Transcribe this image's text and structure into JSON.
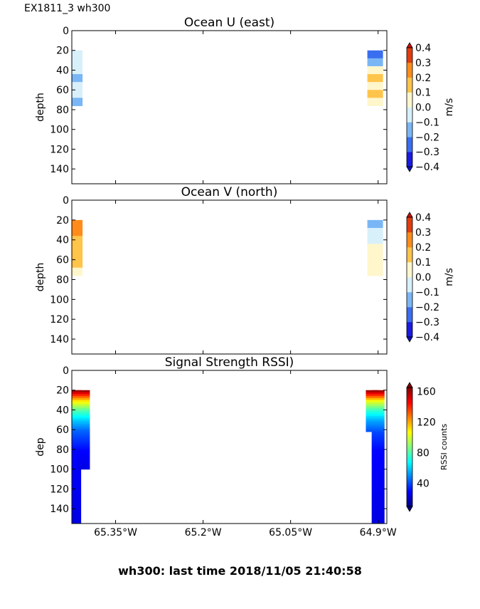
{
  "suptitle": "EX1811_3 wh300",
  "footer": "wh300: last time 2018/11/05 21:40:58",
  "chart_data": [
    {
      "type": "heatmap",
      "title": "Ocean U (east)",
      "ylabel": "depth",
      "ylim": [
        155,
        0
      ],
      "yticks": [
        "0",
        "20",
        "40",
        "60",
        "80",
        "100",
        "120",
        "140"
      ],
      "xlim": [
        -65.425,
        -64.885
      ],
      "xticks": [],
      "colorbar": {
        "label": "m/s",
        "range": [
          -0.4,
          0.4
        ],
        "ticks": [
          "0.4",
          "0.3",
          "0.2",
          "0.1",
          "0.0",
          "−0.1",
          "−0.2",
          "−0.3",
          "−0.4"
        ],
        "colors": [
          "#1a1ae0",
          "#3a6ef0",
          "#7ab6f5",
          "#d8f0fa",
          "#fff6cc",
          "#ffc44a",
          "#ff8c1a",
          "#e03c10"
        ]
      },
      "cells": [
        {
          "x": -65.42,
          "depth": 24,
          "value": -0.05
        },
        {
          "x": -65.42,
          "depth": 32,
          "value": -0.05
        },
        {
          "x": -65.42,
          "depth": 40,
          "value": -0.06
        },
        {
          "x": -65.42,
          "depth": 48,
          "value": -0.12
        },
        {
          "x": -65.42,
          "depth": 56,
          "value": -0.06
        },
        {
          "x": -65.42,
          "depth": 64,
          "value": -0.05
        },
        {
          "x": -65.42,
          "depth": 72,
          "value": -0.12
        },
        {
          "x": -64.905,
          "depth": 24,
          "value": -0.3
        },
        {
          "x": -64.905,
          "depth": 32,
          "value": -0.15
        },
        {
          "x": -64.905,
          "depth": 40,
          "value": 0.05
        },
        {
          "x": -64.905,
          "depth": 48,
          "value": 0.12
        },
        {
          "x": -64.905,
          "depth": 56,
          "value": 0.05
        },
        {
          "x": -64.905,
          "depth": 64,
          "value": 0.12
        },
        {
          "x": -64.905,
          "depth": 72,
          "value": 0.05
        }
      ]
    },
    {
      "type": "heatmap",
      "title": "Ocean V (north)",
      "ylabel": "depth",
      "ylim": [
        155,
        0
      ],
      "yticks": [
        "0",
        "20",
        "40",
        "60",
        "80",
        "100",
        "120",
        "140"
      ],
      "xlim": [
        -65.425,
        -64.885
      ],
      "xticks": [],
      "colorbar": {
        "label": "m/s",
        "range": [
          -0.4,
          0.4
        ],
        "ticks": [
          "0.4",
          "0.3",
          "0.2",
          "0.1",
          "0.0",
          "−0.1",
          "−0.2",
          "−0.3",
          "−0.4"
        ],
        "colors": [
          "#1a1ae0",
          "#3a6ef0",
          "#7ab6f5",
          "#d8f0fa",
          "#fff6cc",
          "#ffc44a",
          "#ff8c1a",
          "#e03c10"
        ]
      },
      "cells": [
        {
          "x": -65.42,
          "depth": 24,
          "value": 0.25
        },
        {
          "x": -65.42,
          "depth": 32,
          "value": 0.2
        },
        {
          "x": -65.42,
          "depth": 40,
          "value": 0.15
        },
        {
          "x": -65.42,
          "depth": 48,
          "value": 0.15
        },
        {
          "x": -65.42,
          "depth": 56,
          "value": 0.1
        },
        {
          "x": -65.42,
          "depth": 64,
          "value": 0.15
        },
        {
          "x": -65.42,
          "depth": 72,
          "value": 0.05
        },
        {
          "x": -64.905,
          "depth": 24,
          "value": -0.12
        },
        {
          "x": -64.905,
          "depth": 32,
          "value": -0.05
        },
        {
          "x": -64.905,
          "depth": 40,
          "value": -0.05
        },
        {
          "x": -64.905,
          "depth": 48,
          "value": 0.05
        },
        {
          "x": -64.905,
          "depth": 56,
          "value": 0.05
        },
        {
          "x": -64.905,
          "depth": 64,
          "value": 0.05
        },
        {
          "x": -64.905,
          "depth": 72,
          "value": 0.05
        }
      ]
    },
    {
      "type": "heatmap",
      "title": "Signal Strength RSSI)",
      "ylabel": "dep",
      "ylim": [
        155,
        0
      ],
      "yticks": [
        "0",
        "20",
        "40",
        "60",
        "80",
        "100",
        "120",
        "140"
      ],
      "xlim": [
        -65.425,
        -64.885
      ],
      "xticks": [
        "65.35°W",
        "65.2°W",
        "65.05°W",
        "64.9°W"
      ],
      "xtick_values": [
        -65.35,
        -65.2,
        -65.05,
        -64.9
      ],
      "colorbar": {
        "label": "RSSI counts",
        "range": [
          10,
          165
        ],
        "ticks": [
          "160",
          "120",
          "80",
          "40"
        ],
        "tick_values": [
          160,
          120,
          80,
          40
        ]
      },
      "columns": [
        {
          "x": -65.42,
          "depth_max": 155,
          "profile": [
            [
              20,
              160
            ],
            [
              25,
              135
            ],
            [
              30,
              110
            ],
            [
              35,
              95
            ],
            [
              40,
              80
            ],
            [
              50,
              60
            ],
            [
              60,
              45
            ],
            [
              80,
              30
            ],
            [
              155,
              25
            ]
          ]
        },
        {
          "x": -65.405,
          "depth_max": 100,
          "profile": [
            [
              20,
              160
            ],
            [
              25,
              135
            ],
            [
              30,
              110
            ],
            [
              35,
              95
            ],
            [
              40,
              80
            ],
            [
              50,
              60
            ],
            [
              60,
              45
            ],
            [
              80,
              30
            ],
            [
              100,
              25
            ]
          ]
        },
        {
          "x": -64.91,
          "depth_max": 62,
          "profile": [
            [
              20,
              160
            ],
            [
              25,
              135
            ],
            [
              30,
              105
            ],
            [
              40,
              75
            ],
            [
              50,
              55
            ],
            [
              62,
              40
            ]
          ]
        },
        {
          "x": -64.9,
          "depth_max": 155,
          "profile": [
            [
              20,
              160
            ],
            [
              25,
              135
            ],
            [
              30,
              105
            ],
            [
              40,
              75
            ],
            [
              50,
              55
            ],
            [
              62,
              40
            ],
            [
              80,
              30
            ],
            [
              155,
              25
            ]
          ]
        }
      ]
    }
  ]
}
